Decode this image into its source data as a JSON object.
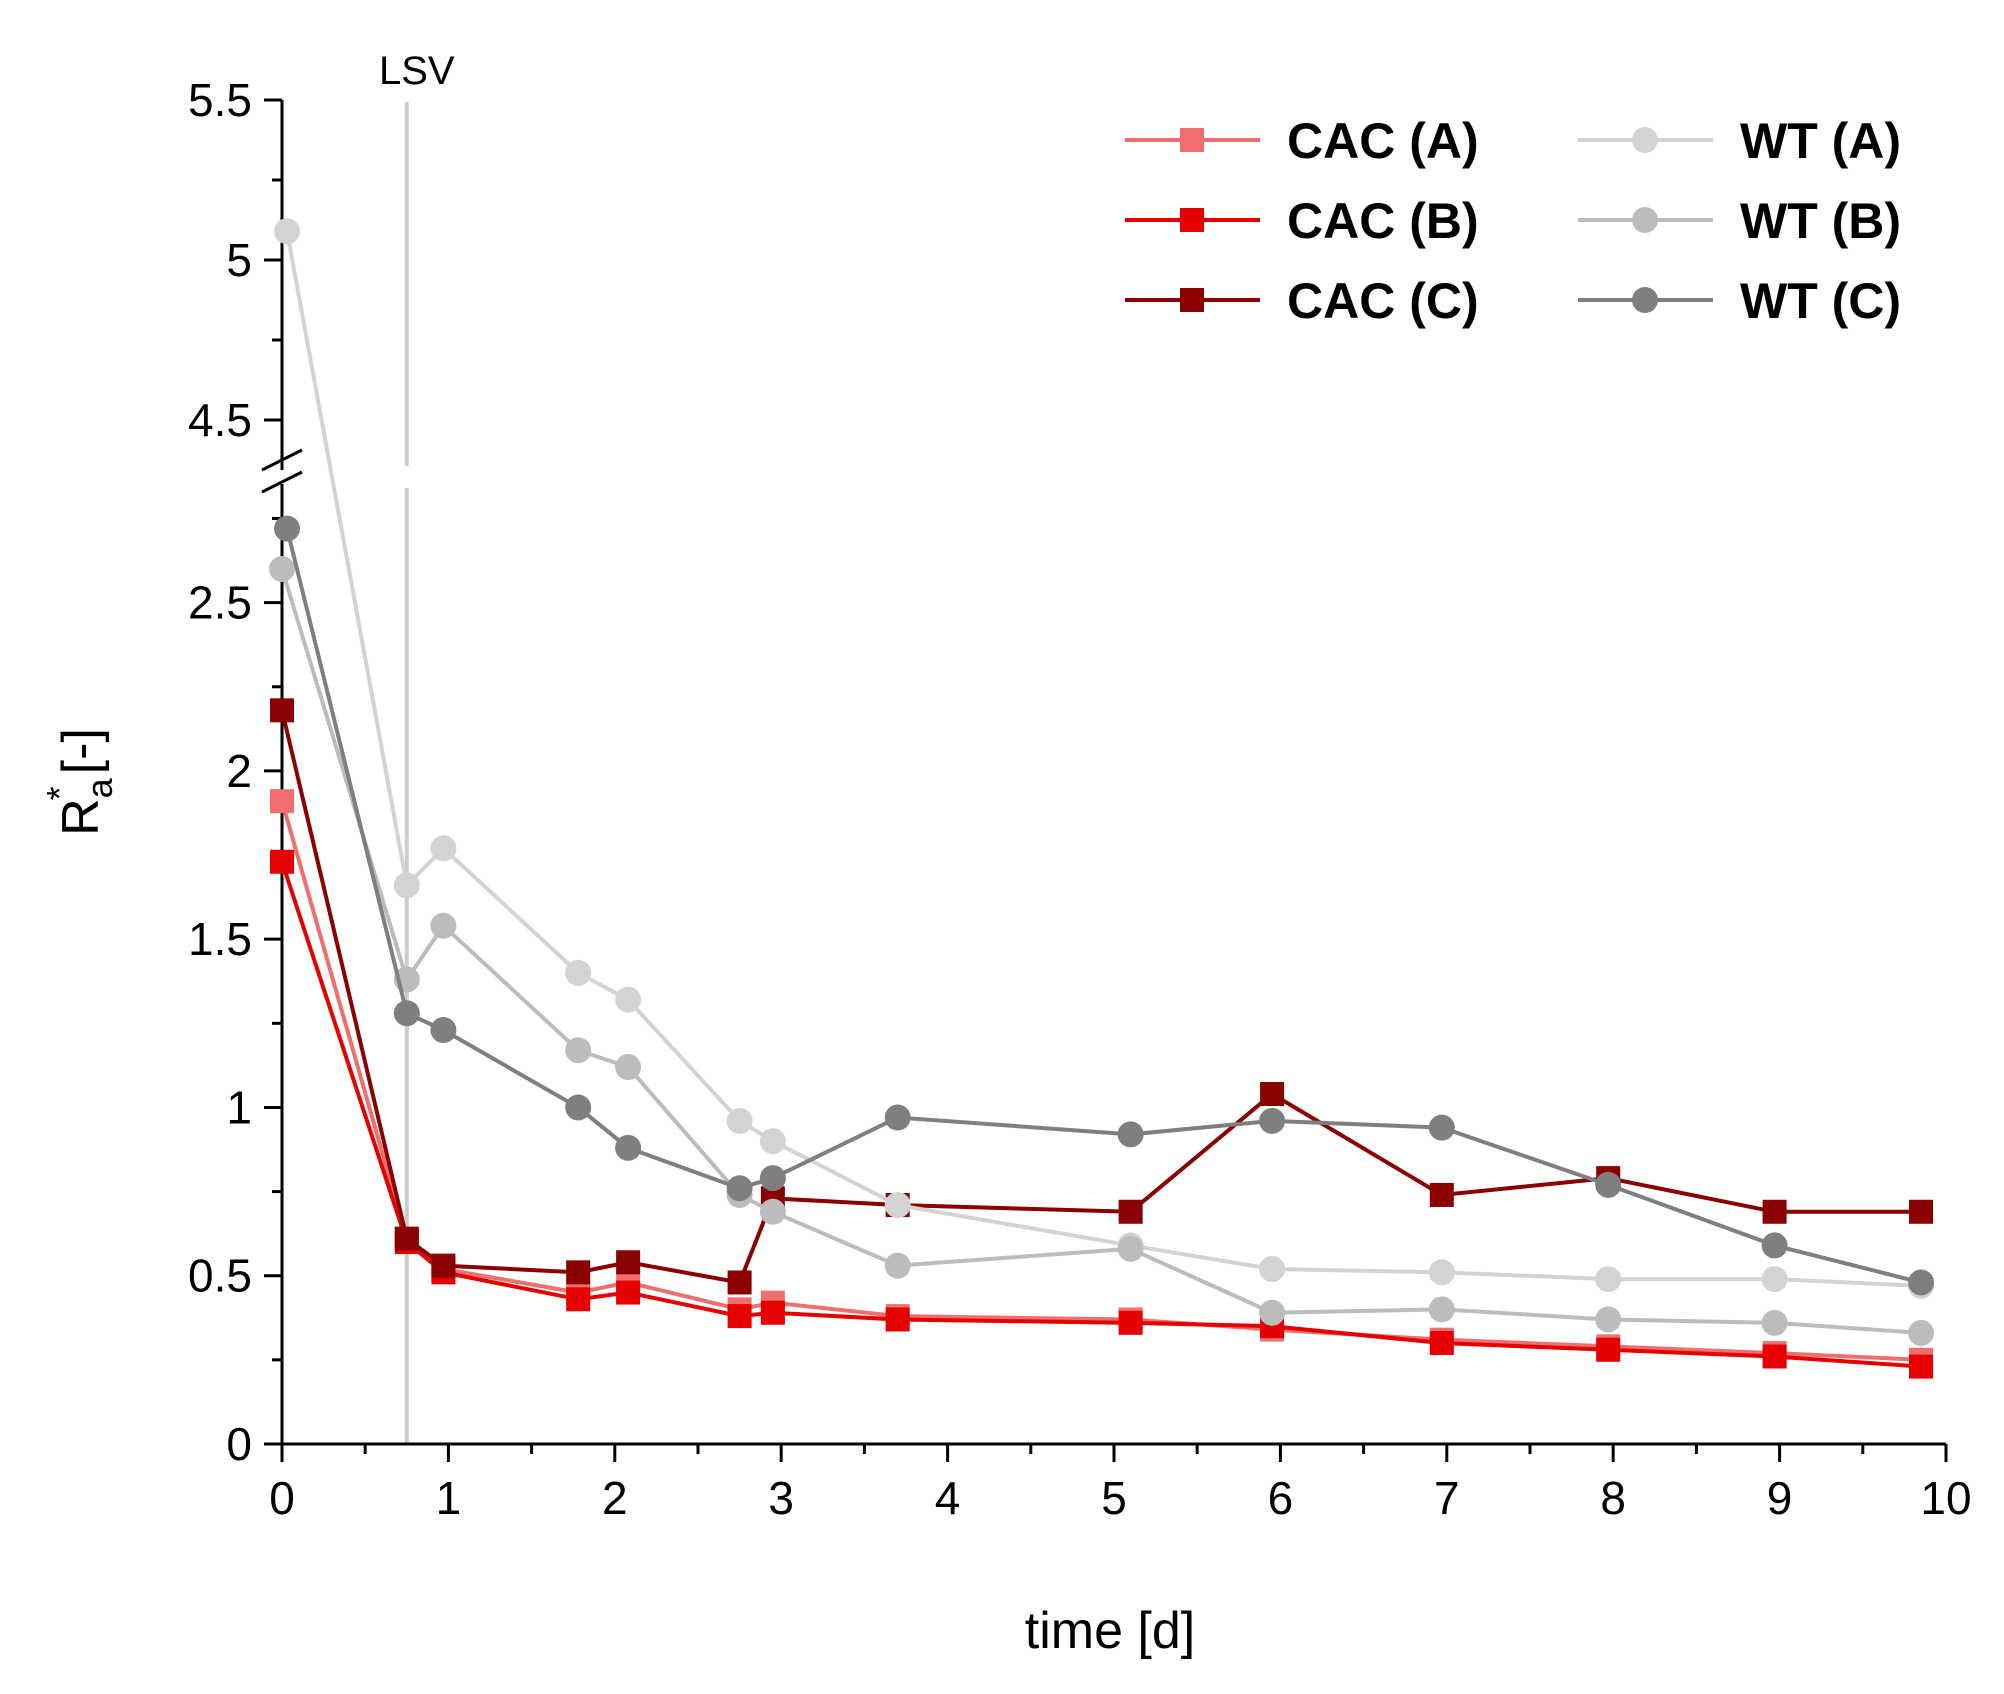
{
  "chart_data": {
    "type": "line",
    "title": "",
    "xlabel": "time [d]",
    "ylabel": {
      "base": "R",
      "superscript": "*",
      "subscript": "a",
      "unit": "[-]"
    },
    "xlim": [
      0,
      10
    ],
    "ylim_lower": [
      0,
      2.9
    ],
    "ylim_upper": [
      4.4,
      5.5
    ],
    "axis_break": "between 2.9 and 4.4",
    "x_ticks": [
      "0",
      "1",
      "2",
      "3",
      "4",
      "5",
      "6",
      "7",
      "8",
      "9",
      "10"
    ],
    "y_ticks_lower": [
      "0",
      "0.5",
      "1",
      "1.5",
      "2",
      "2.5"
    ],
    "y_ticks_upper": [
      "4.5",
      "5",
      "5.5"
    ],
    "grid": false,
    "legend_position": "top-right",
    "annotations": [
      {
        "text": "LSV",
        "x": 0.75
      }
    ],
    "series": [
      {
        "name": "CAC (A)",
        "color": "#f06e6e",
        "marker": "square",
        "x": [
          0,
          0.75,
          0.97,
          1.78,
          2.08,
          2.75,
          2.95,
          3.7,
          5.1,
          5.95,
          6.97,
          7.97,
          8.97,
          9.85
        ],
        "y": [
          1.91,
          0.61,
          0.52,
          0.45,
          0.48,
          0.4,
          0.42,
          0.38,
          0.37,
          0.34,
          0.31,
          0.29,
          0.27,
          0.25
        ]
      },
      {
        "name": "CAC (B)",
        "color": "#e60000",
        "marker": "square",
        "x": [
          0,
          0.75,
          0.97,
          1.78,
          2.08,
          2.75,
          2.95,
          3.7,
          5.1,
          5.95,
          6.97,
          7.97,
          8.97,
          9.85
        ],
        "y": [
          1.73,
          0.6,
          0.51,
          0.43,
          0.45,
          0.38,
          0.39,
          0.37,
          0.36,
          0.35,
          0.3,
          0.28,
          0.26,
          0.23
        ]
      },
      {
        "name": "CAC (C)",
        "color": "#8b0000",
        "marker": "square",
        "x": [
          0,
          0.75,
          0.97,
          1.78,
          2.08,
          2.75,
          2.95,
          3.7,
          5.1,
          5.95,
          6.97,
          7.97,
          8.97,
          9.85
        ],
        "y": [
          2.18,
          0.61,
          0.53,
          0.51,
          0.54,
          0.48,
          0.73,
          0.71,
          0.69,
          1.04,
          0.74,
          0.79,
          0.69,
          0.69
        ]
      },
      {
        "name": "WT (A)",
        "color": "#d3d3d3",
        "marker": "circle",
        "x": [
          0.03,
          0.75,
          0.97,
          1.78,
          2.08,
          2.75,
          2.95,
          3.7,
          5.1,
          5.95,
          6.97,
          7.97,
          8.97,
          9.85
        ],
        "y": [
          5.09,
          1.66,
          1.77,
          1.4,
          1.32,
          0.96,
          0.9,
          0.71,
          0.59,
          0.52,
          0.51,
          0.49,
          0.49,
          0.47
        ]
      },
      {
        "name": "WT (B)",
        "color": "#bcbcbc",
        "marker": "circle",
        "x": [
          0,
          0.75,
          0.97,
          1.78,
          2.08,
          2.75,
          2.95,
          3.7,
          5.1,
          5.95,
          6.97,
          7.97,
          8.97,
          9.85
        ],
        "y": [
          2.6,
          1.38,
          1.54,
          1.17,
          1.12,
          0.74,
          0.69,
          0.53,
          0.58,
          0.39,
          0.4,
          0.37,
          0.36,
          0.33
        ]
      },
      {
        "name": "WT (C)",
        "color": "#7f7f7f",
        "marker": "circle",
        "x": [
          0.03,
          0.75,
          0.97,
          1.78,
          2.08,
          2.75,
          2.95,
          3.7,
          5.1,
          5.95,
          6.97,
          7.97,
          8.97,
          9.85
        ],
        "y": [
          2.72,
          1.28,
          1.23,
          1.0,
          0.88,
          0.76,
          0.79,
          0.97,
          0.92,
          0.96,
          0.94,
          0.77,
          0.59,
          0.48
        ]
      }
    ]
  }
}
